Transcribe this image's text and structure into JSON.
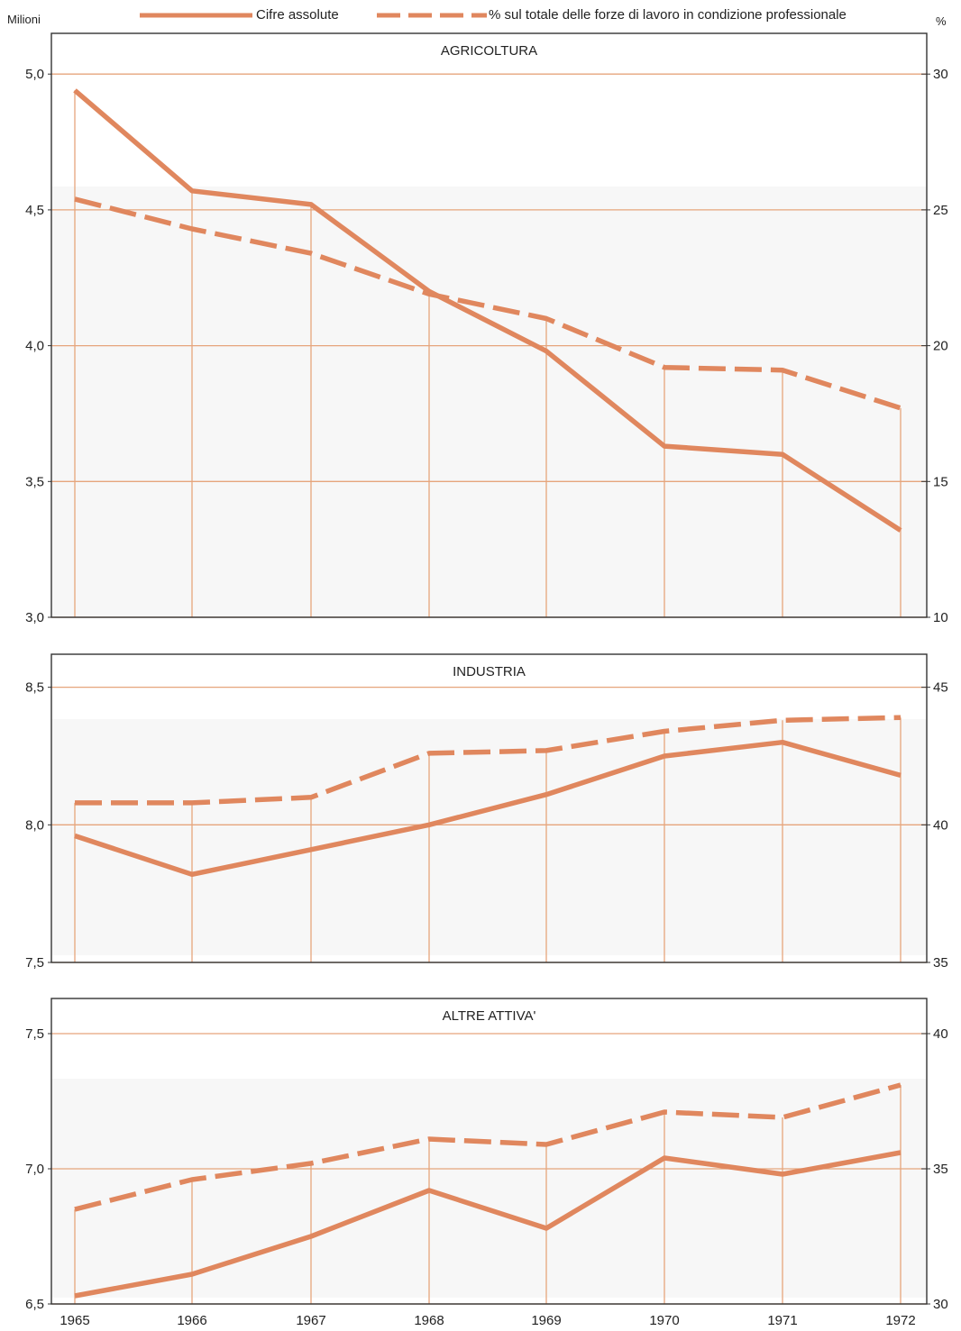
{
  "legend": {
    "absolute_label": "Cifre assolute",
    "percent_label": "% sul totale delle forze di lavoro in condizione professionale"
  },
  "left_unit": "Milioni",
  "right_unit": "%",
  "colors": {
    "line": "#e0875e",
    "grid": "#e6a57c",
    "frame": "#333333",
    "band": "#f7f7f7"
  },
  "chart_data": [
    {
      "type": "line",
      "title": "AGRICOLTURA",
      "x": [
        1965,
        1966,
        1967,
        1968,
        1969,
        1970,
        1971,
        1972
      ],
      "ylim": [
        3.0,
        5.15
      ],
      "y_ticks": [
        3.0,
        3.5,
        4.0,
        4.5,
        5.0
      ],
      "y_tick_labels": [
        "3,0",
        "3,5",
        "4,0",
        "4,5",
        "5,0"
      ],
      "y2lim": [
        10,
        31.5
      ],
      "y2_ticks": [
        10,
        15,
        20,
        25,
        30
      ],
      "y2_tick_labels": [
        "10",
        "15",
        "20",
        "25",
        "30"
      ],
      "series": [
        {
          "name": "Cifre assolute",
          "axis": "left",
          "style": "solid",
          "values": [
            4.94,
            4.57,
            4.52,
            4.2,
            3.98,
            3.63,
            3.6,
            3.32
          ]
        },
        {
          "name": "% sul totale delle forze di lavoro in condizione professionale",
          "axis": "right",
          "style": "dashed",
          "values": [
            25.4,
            24.3,
            23.4,
            21.9,
            21.0,
            19.2,
            19.1,
            17.7
          ]
        }
      ]
    },
    {
      "type": "line",
      "title": "INDUSTRIA",
      "x": [
        1965,
        1966,
        1967,
        1968,
        1969,
        1970,
        1971,
        1972
      ],
      "ylim": [
        7.5,
        8.62
      ],
      "y_ticks": [
        7.5,
        8.0,
        8.5
      ],
      "y_tick_labels": [
        "7,5",
        "8,0",
        "8,5"
      ],
      "y2lim": [
        35,
        46.2
      ],
      "y2_ticks": [
        35,
        40,
        45
      ],
      "y2_tick_labels": [
        "35",
        "40",
        "45"
      ],
      "series": [
        {
          "name": "Cifre assolute",
          "axis": "left",
          "style": "solid",
          "values": [
            7.96,
            7.82,
            7.91,
            8.0,
            8.11,
            8.25,
            8.3,
            8.18
          ]
        },
        {
          "name": "% sul totale delle forze di lavoro in condizione professionale",
          "axis": "right",
          "style": "dashed",
          "values": [
            40.8,
            40.8,
            41.0,
            42.6,
            42.7,
            43.4,
            43.8,
            43.9
          ]
        }
      ]
    },
    {
      "type": "line",
      "title": "ALTRE ATTIVA'",
      "x": [
        1965,
        1966,
        1967,
        1968,
        1969,
        1970,
        1971,
        1972
      ],
      "ylim": [
        6.5,
        7.63
      ],
      "y_ticks": [
        6.5,
        7.0,
        7.5
      ],
      "y_tick_labels": [
        "6,5",
        "7,0",
        "7,5"
      ],
      "y2lim": [
        30,
        41.3
      ],
      "y2_ticks": [
        30,
        35,
        40
      ],
      "y2_tick_labels": [
        "30",
        "35",
        "40"
      ],
      "series": [
        {
          "name": "Cifre assolute",
          "axis": "left",
          "style": "solid",
          "values": [
            6.53,
            6.61,
            6.75,
            6.92,
            6.78,
            7.04,
            6.98,
            7.06
          ]
        },
        {
          "name": "% sul totale delle forze di lavoro in condizione professionale",
          "axis": "right",
          "style": "dashed",
          "values": [
            33.5,
            34.6,
            35.2,
            36.1,
            35.9,
            37.1,
            36.9,
            38.1
          ]
        }
      ]
    }
  ],
  "x_tick_labels": [
    "1965",
    "1966",
    "1967",
    "1968",
    "1969",
    "1970",
    "1971",
    "1972"
  ]
}
